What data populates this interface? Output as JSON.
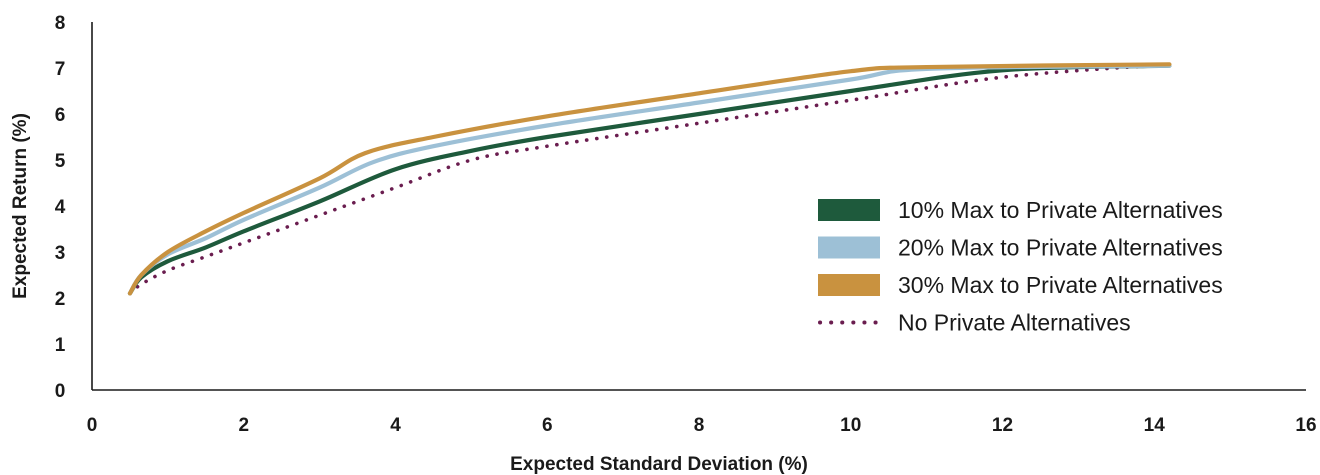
{
  "chart_data": {
    "type": "line",
    "title": "",
    "xlabel": "Expected Standard Deviation (%)",
    "ylabel": "Expected Return (%)",
    "xlim": [
      0,
      16
    ],
    "ylim": [
      0,
      8
    ],
    "x_ticks": [
      "0",
      "2",
      "4",
      "6",
      "8",
      "10",
      "12",
      "14",
      "16"
    ],
    "y_ticks": [
      "0",
      "1",
      "2",
      "3",
      "4",
      "5",
      "6",
      "7",
      "8"
    ],
    "grid": false,
    "legend_position": "right",
    "series": [
      {
        "name": "10% Max to Private Alternatives",
        "color": "#1e5a3c",
        "style": "solid",
        "x": [
          0.5,
          0.65,
          1.0,
          1.5,
          2.0,
          3.0,
          4.0,
          5.0,
          6.0,
          8.0,
          10.0,
          12.0,
          14.2
        ],
        "y": [
          2.1,
          2.45,
          2.8,
          3.1,
          3.45,
          4.1,
          4.8,
          5.2,
          5.5,
          6.0,
          6.5,
          6.95,
          7.05
        ]
      },
      {
        "name": "20% Max to Private Alternatives",
        "color": "#9dc0d6",
        "style": "solid",
        "x": [
          0.5,
          0.65,
          1.0,
          1.5,
          2.0,
          3.0,
          3.7,
          4.5,
          6.0,
          8.0,
          10.0,
          11.0,
          14.2
        ],
        "y": [
          2.1,
          2.5,
          2.95,
          3.3,
          3.7,
          4.4,
          4.95,
          5.3,
          5.75,
          6.25,
          6.75,
          6.98,
          7.05
        ]
      },
      {
        "name": "30% Max to Private Alternatives",
        "color": "#c9923f",
        "style": "solid",
        "x": [
          0.5,
          0.65,
          1.0,
          1.5,
          2.0,
          3.0,
          3.6,
          4.5,
          6.0,
          8.0,
          10.0,
          11.0,
          14.2
        ],
        "y": [
          2.1,
          2.5,
          3.0,
          3.45,
          3.85,
          4.6,
          5.15,
          5.5,
          5.95,
          6.45,
          6.93,
          7.02,
          7.08
        ]
      },
      {
        "name": "No Private Alternatives",
        "color": "#6a1d4f",
        "style": "dotted",
        "x": [
          0.5,
          0.65,
          1.0,
          1.5,
          2.0,
          3.0,
          4.0,
          5.0,
          6.0,
          8.0,
          10.0,
          12.0,
          14.2
        ],
        "y": [
          2.1,
          2.3,
          2.6,
          2.9,
          3.2,
          3.8,
          4.4,
          5.0,
          5.3,
          5.8,
          6.3,
          6.8,
          7.08
        ]
      }
    ]
  }
}
